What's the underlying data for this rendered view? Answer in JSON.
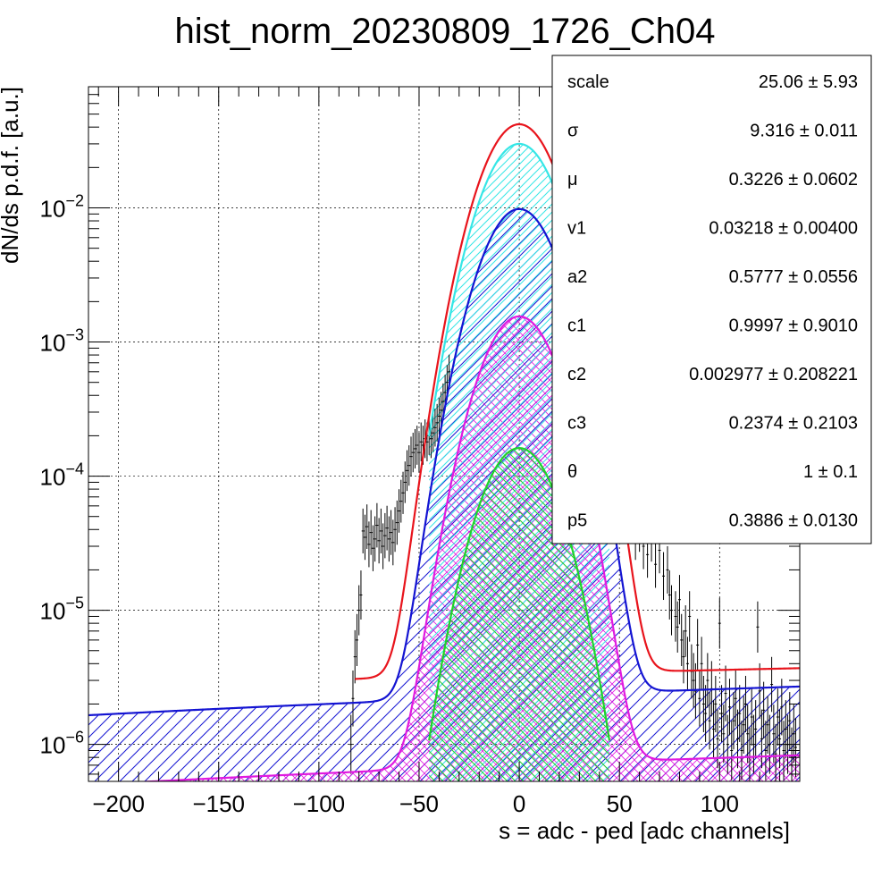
{
  "chart_data": {
    "type": "line",
    "title": "hist_norm_20230809_1726_Ch04",
    "xlabel": "s = adc - ped [adc channels]",
    "ylabel": "dN/ds p.d.f. [a.u.]",
    "xlim": [
      -215,
      140
    ],
    "ylim": [
      5.3e-07,
      0.08
    ],
    "yscale": "log",
    "grid": true,
    "x_ticks": [
      {
        "v": -200,
        "label": "−200"
      },
      {
        "v": -150,
        "label": "−150"
      },
      {
        "v": -100,
        "label": "−100"
      },
      {
        "v": -50,
        "label": "−50"
      },
      {
        "v": 0,
        "label": "0"
      },
      {
        "v": 50,
        "label": "50"
      },
      {
        "v": 100,
        "label": "100"
      }
    ],
    "y_ticks": [
      {
        "v": 1e-06,
        "base": "10",
        "exp": "−6"
      },
      {
        "v": 1e-05,
        "base": "10",
        "exp": "−5"
      },
      {
        "v": 0.0001,
        "base": "10",
        "exp": "−4"
      },
      {
        "v": 0.001,
        "base": "10",
        "exp": "−3"
      },
      {
        "v": 0.01,
        "base": "10",
        "exp": "−2"
      }
    ],
    "stats_box": {
      "location": "top-right",
      "rows": [
        {
          "name": "scale",
          "value": "25.06 ± 5.93"
        },
        {
          "name": "σ",
          "value": "9.316 ± 0.011"
        },
        {
          "name": "μ",
          "value": "0.3226 ± 0.0602"
        },
        {
          "name": "v1",
          "value": "0.03218 ± 0.00400"
        },
        {
          "name": "a2",
          "value": "0.5777 ± 0.0556"
        },
        {
          "name": "c1",
          "value": "0.9997 ± 0.9010"
        },
        {
          "name": "c2",
          "value": "0.002977 ± 0.208221"
        },
        {
          "name": "c3",
          "value": "0.2374 ± 0.2103"
        },
        {
          "name": "θ",
          "value": "1 ± 0.1"
        },
        {
          "name": "p5",
          "value": "0.3886 ± 0.0130"
        }
      ]
    },
    "components": [
      {
        "key": "total",
        "color": "#e8141c",
        "peak": 0.042,
        "sigma": 14.2,
        "xmin": -82,
        "xmax": 140,
        "bg": [
          2.7e-06,
          3.7e-06
        ]
      },
      {
        "key": "blue",
        "color": "#1414d2",
        "peak": 0.0098,
        "sigma": 14.2,
        "xmin": -215,
        "xmax": 140,
        "bg": [
          1.65e-06,
          2.7e-06
        ],
        "hatch": true
      },
      {
        "key": "cyan",
        "color": "#35e6e6",
        "peak": 0.03,
        "sigma": 14.2,
        "xmin": -45,
        "xmax": 45,
        "bg": null,
        "hatch": true
      },
      {
        "key": "magenta",
        "color": "#e01ae0",
        "peak": 0.00155,
        "sigma": 14.2,
        "xmin": -215,
        "xmax": 140,
        "bg": [
          5e-07,
          8.3e-07
        ],
        "hatch": true
      },
      {
        "key": "green",
        "color": "#20d22a",
        "peak": 0.000162,
        "sigma": 14.2,
        "xmin": -45,
        "xmax": 45,
        "bg": null,
        "hatch": true
      }
    ],
    "data_points": [
      [
        -84,
        1e-06
      ],
      [
        -83,
        2.2e-06
      ],
      [
        -82,
        4.5e-06
      ],
      [
        -81,
        6e-06
      ],
      [
        -80,
        1e-05
      ],
      [
        -79,
        1.3e-05
      ],
      [
        -78,
        3.9e-05
      ],
      [
        -77,
        3.5e-05
      ],
      [
        -76,
        4.2e-05
      ],
      [
        -75,
        3.1e-05
      ],
      [
        -74,
        3.8e-05
      ],
      [
        -73,
        2.9e-05
      ],
      [
        -72,
        3.4e-05
      ],
      [
        -71,
        4.3e-05
      ],
      [
        -70,
        3.3e-05
      ],
      [
        -69,
        3.9e-05
      ],
      [
        -68,
        3e-05
      ],
      [
        -67,
        3.6e-05
      ],
      [
        -66,
        4.1e-05
      ],
      [
        -65,
        3.4e-05
      ],
      [
        -64,
        3.8e-05
      ],
      [
        -63,
        3.2e-05
      ],
      [
        -62,
        4e-05
      ],
      [
        -61,
        4.5e-05
      ],
      [
        -60,
        5.5e-05
      ],
      [
        -59,
        6.5e-05
      ],
      [
        -58,
        7.5e-05
      ],
      [
        -57,
        9e-05
      ],
      [
        -56,
        0.00011
      ],
      [
        -55,
        0.00012
      ],
      [
        -54,
        0.00014
      ],
      [
        -53,
        0.00015
      ],
      [
        -52,
        0.00016
      ],
      [
        -51,
        0.00017
      ],
      [
        -50,
        0.00015
      ],
      [
        -49,
        0.00018
      ],
      [
        -48,
        0.00017
      ],
      [
        -47,
        0.00019
      ],
      [
        -46,
        0.00018
      ],
      [
        -45,
        0.0002
      ],
      [
        -44,
        0.00019
      ],
      [
        -43,
        0.00021
      ],
      [
        -42,
        0.00023
      ],
      [
        -41,
        0.00025
      ],
      [
        -40,
        0.00028
      ],
      [
        -39,
        0.00031
      ],
      [
        -38,
        0.00036
      ],
      [
        -37,
        0.00042
      ],
      [
        -36,
        0.0005
      ],
      [
        -35,
        0.0006
      ],
      [
        58,
        3.5e-05
      ],
      [
        60,
        4e-05
      ],
      [
        62,
        3e-05
      ],
      [
        64,
        2.6e-05
      ],
      [
        66,
        3.4e-05
      ],
      [
        68,
        2.2e-05
      ],
      [
        70,
        2.8e-05
      ],
      [
        72,
        1.8e-05
      ],
      [
        74,
        2e-05
      ],
      [
        75,
        1.3e-05
      ],
      [
        76,
        1e-05
      ],
      [
        78,
        9e-06
      ],
      [
        79,
        7.5e-06
      ],
      [
        80,
        1.2e-05
      ],
      [
        81,
        6e-06
      ],
      [
        82,
        4.5e-06
      ],
      [
        83,
        7e-06
      ],
      [
        84,
        4e-06
      ],
      [
        85,
        9e-06
      ],
      [
        86,
        3.5e-06
      ],
      [
        87,
        3e-06
      ],
      [
        88,
        2.5e-06
      ],
      [
        89,
        5.5e-06
      ],
      [
        90,
        2.2e-06
      ],
      [
        91,
        4e-06
      ],
      [
        92,
        2e-06
      ],
      [
        93,
        1.7e-06
      ],
      [
        94,
        3e-06
      ],
      [
        95,
        1.5e-06
      ],
      [
        96,
        2.6e-06
      ],
      [
        97,
        1.3e-06
      ],
      [
        98,
        2e-06
      ],
      [
        99,
        1.1e-06
      ],
      [
        100,
        8e-06
      ],
      [
        101,
        1.7e-06
      ],
      [
        102,
        1.2e-06
      ],
      [
        103,
        2.4e-06
      ],
      [
        104,
        1e-06
      ],
      [
        105,
        1.9e-06
      ],
      [
        106,
        9e-07
      ],
      [
        107,
        1.5e-06
      ],
      [
        108,
        2.2e-06
      ],
      [
        109,
        1.1e-06
      ],
      [
        110,
        1.7e-06
      ],
      [
        111,
        9e-07
      ],
      [
        112,
        1.4e-06
      ],
      [
        113,
        2e-06
      ],
      [
        114,
        1.2e-06
      ],
      [
        115,
        8e-07
      ],
      [
        116,
        1.6e-06
      ],
      [
        117,
        1e-06
      ],
      [
        118,
        1.3e-06
      ],
      [
        119,
        7.5e-06
      ],
      [
        120,
        2.5e-06
      ],
      [
        121,
        1.1e-06
      ],
      [
        122,
        1.8e-06
      ],
      [
        123,
        9e-07
      ],
      [
        124,
        1.4e-06
      ],
      [
        125,
        1e-06
      ],
      [
        126,
        2.8e-06
      ],
      [
        127,
        1.2e-06
      ],
      [
        128,
        8.5e-07
      ],
      [
        129,
        1.6e-06
      ],
      [
        130,
        1.1e-06
      ],
      [
        131,
        1.9e-06
      ],
      [
        132,
        9e-07
      ],
      [
        133,
        1.3e-06
      ],
      [
        134,
        1e-06
      ],
      [
        135,
        1.5e-06
      ],
      [
        136,
        8e-07
      ],
      [
        137,
        1.2e-06
      ],
      [
        138,
        9.5e-07
      ]
    ]
  }
}
